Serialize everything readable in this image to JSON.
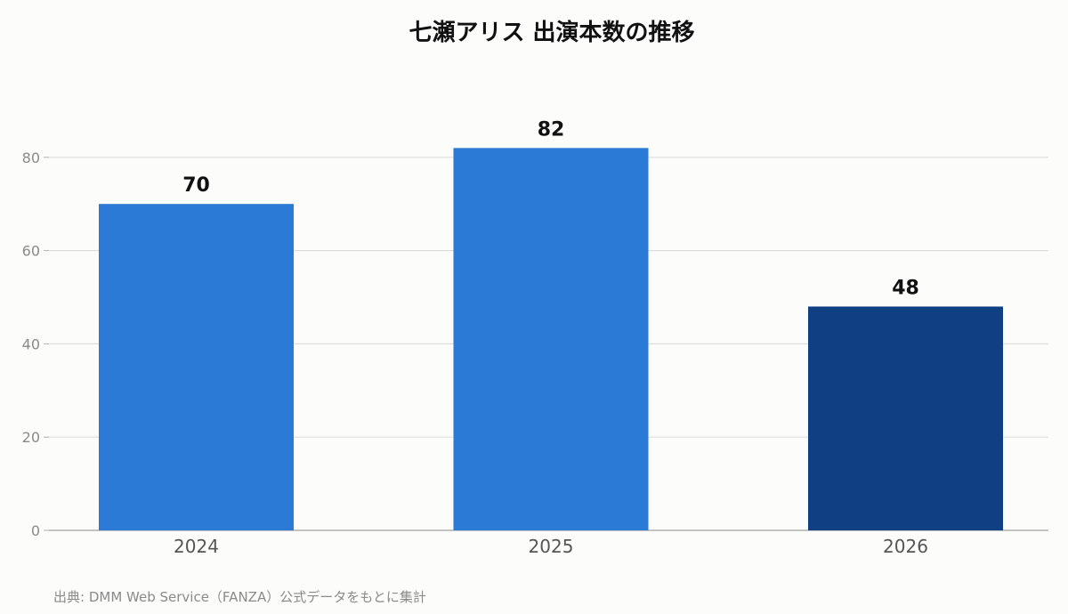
{
  "chart_data": {
    "type": "bar",
    "title": "七瀬アリス 出演本数の推移",
    "categories": [
      "2024",
      "2025",
      "2026"
    ],
    "values": [
      70,
      82,
      48
    ],
    "data_labels": [
      "70",
      "82",
      "48"
    ],
    "bar_colors": [
      "#2b7ad6",
      "#2b7ad6",
      "#104083"
    ],
    "ylim": [
      0,
      90
    ],
    "yticks": [
      0,
      20,
      40,
      60,
      80
    ],
    "ytick_labels": [
      "0",
      "20",
      "40",
      "60",
      "80"
    ],
    "grid": true,
    "xlabel": "",
    "ylabel": ""
  },
  "source_note": "出典: DMM Web Service（FANZA）公式データをもとに集計",
  "colors": {
    "grid": "#dedede",
    "axis": "#b0b0b0",
    "background": "#fcfcfa"
  }
}
